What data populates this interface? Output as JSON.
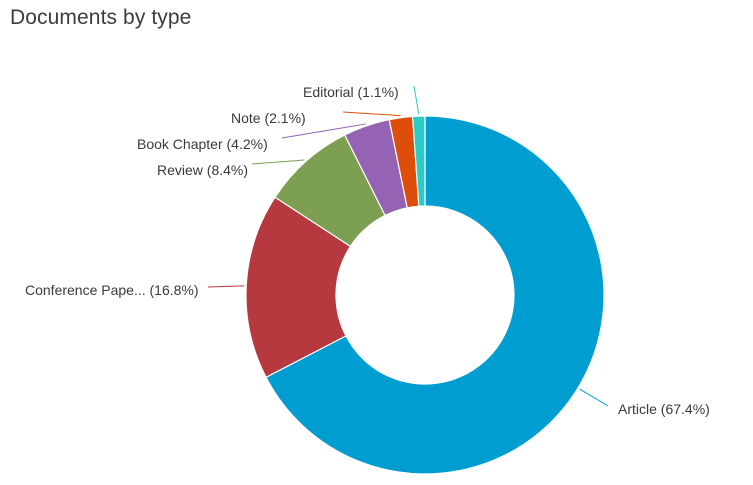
{
  "chart_data": {
    "type": "pie",
    "title": "Documents by type",
    "categories": [
      "Article",
      "Conference Pape...",
      "Review",
      "Book Chapter",
      "Note",
      "Editorial"
    ],
    "values": [
      67.4,
      16.8,
      8.4,
      4.2,
      2.1,
      1.1
    ],
    "labels": [
      "Article (67.4%)",
      "Conference Pape... (16.8%)",
      "Review (8.4%)",
      "Book Chapter (4.2%)",
      "Note (2.1%)",
      "Editorial (1.1%)"
    ],
    "colors": [
      "#009dd1",
      "#b5393e",
      "#7d9f52",
      "#9463b3",
      "#dd4e0a",
      "#2bcbc8"
    ],
    "donut": true,
    "legend": "none"
  }
}
